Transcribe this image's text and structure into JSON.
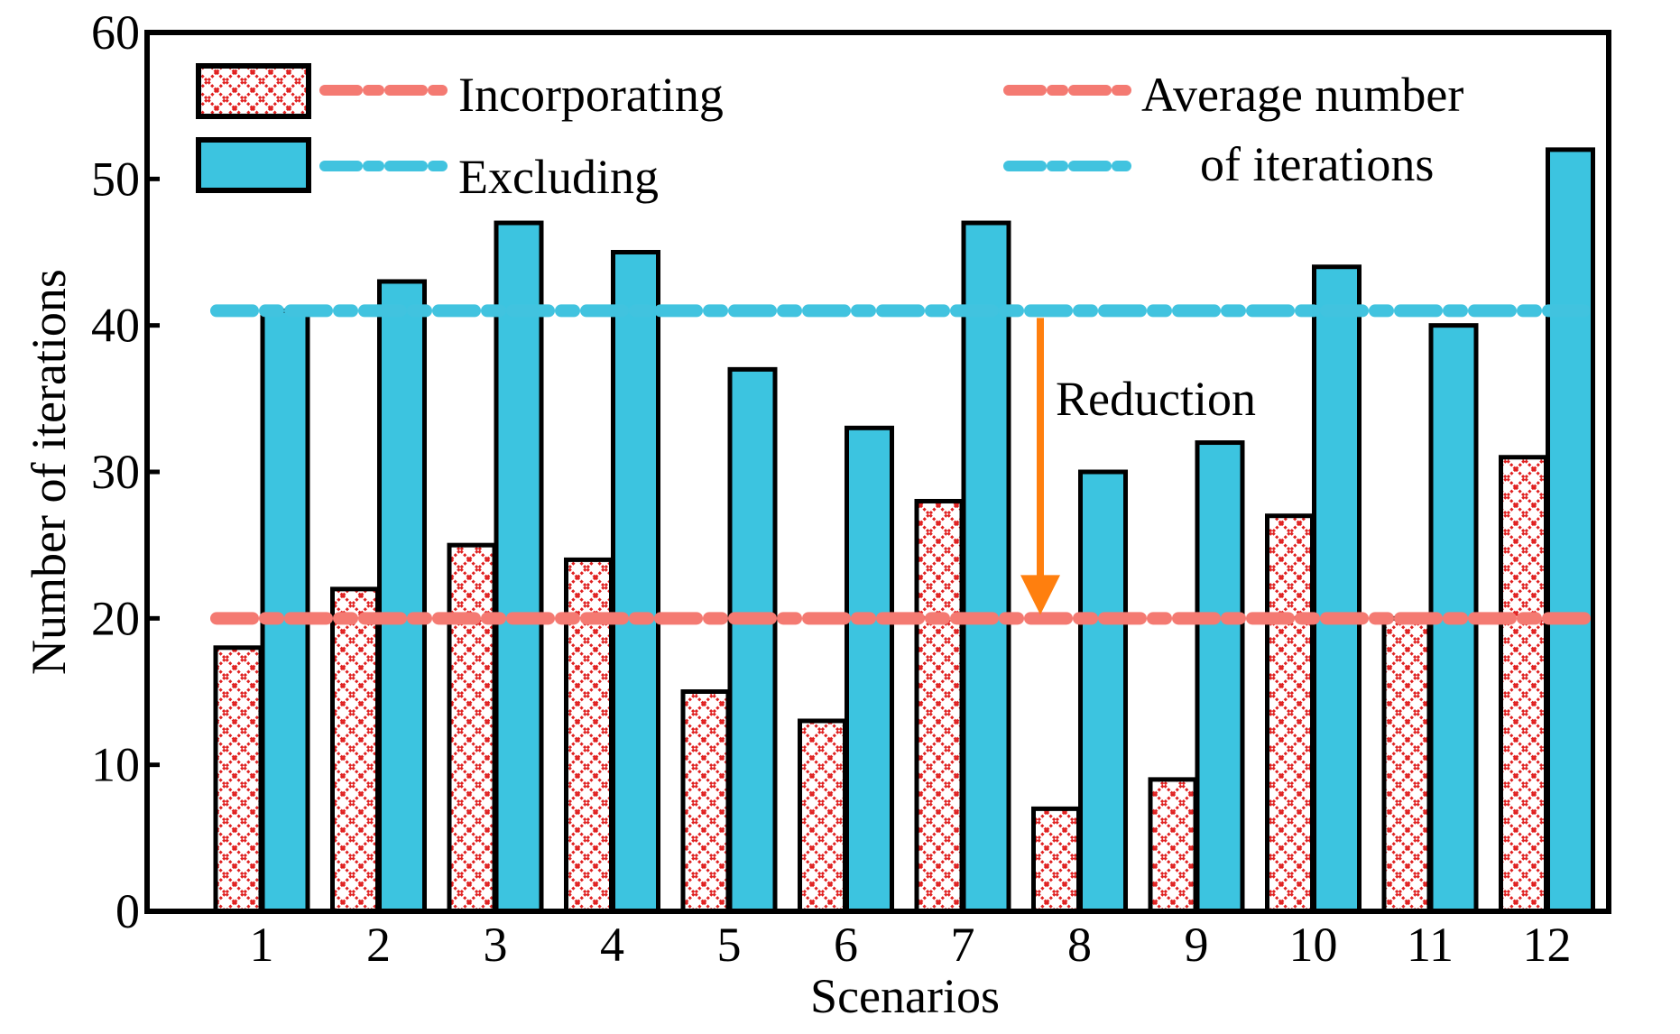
{
  "chart_data": {
    "type": "bar",
    "categories": [
      "1",
      "2",
      "3",
      "4",
      "5",
      "6",
      "7",
      "8",
      "9",
      "10",
      "11",
      "12"
    ],
    "series": [
      {
        "name": "Incorporating",
        "values": [
          18,
          22,
          25,
          24,
          15,
          13,
          28,
          7,
          9,
          27,
          20,
          31
        ],
        "fill": "hatch",
        "color": "#dd2222"
      },
      {
        "name": "Excluding",
        "values": [
          41,
          43,
          47,
          45,
          37,
          33,
          47,
          30,
          32,
          44,
          40,
          52
        ],
        "fill": "solid",
        "color": "#3cc4e0"
      }
    ],
    "averages": [
      {
        "series": "Incorporating",
        "value": 20,
        "color": "#f47a72"
      },
      {
        "series": "Excluding",
        "value": 41,
        "color": "#41c3df"
      }
    ],
    "xlabel": "Scenarios",
    "ylabel": "Number of iterations",
    "ylim": [
      0,
      60
    ],
    "yticks": [
      0,
      10,
      20,
      30,
      40,
      50,
      60
    ],
    "legend": {
      "entries": [
        "Incorporating",
        "Excluding"
      ],
      "average_label_line1": "Average number",
      "average_label_line2": "of iterations",
      "placement": "top"
    },
    "annotation": {
      "text": "Reduction",
      "from": 41,
      "to": 20,
      "between": "7-8",
      "color": "#ff7f0e"
    }
  }
}
